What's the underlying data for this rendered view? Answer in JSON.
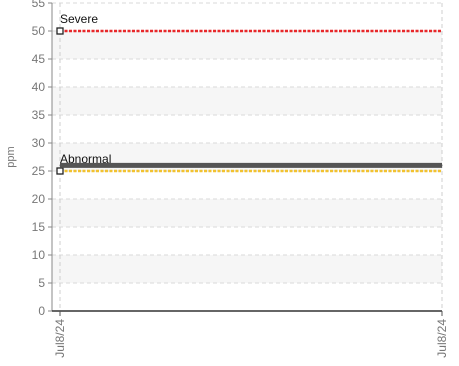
{
  "chart_data": {
    "type": "line",
    "ylabel": "ppm",
    "xlabel": "",
    "ylim": [
      0,
      55
    ],
    "ytick_step": 5,
    "grid": true,
    "x": [
      "Jul8/24",
      "Jul8/24"
    ],
    "series": [
      {
        "values": [
          26,
          26
        ],
        "color": "#555555"
      }
    ],
    "thresholds": [
      {
        "name": "Severe",
        "value": 50,
        "color": "#e8282a"
      },
      {
        "name": "Abnormal",
        "value": 25,
        "color": "#f2c230"
      }
    ]
  }
}
